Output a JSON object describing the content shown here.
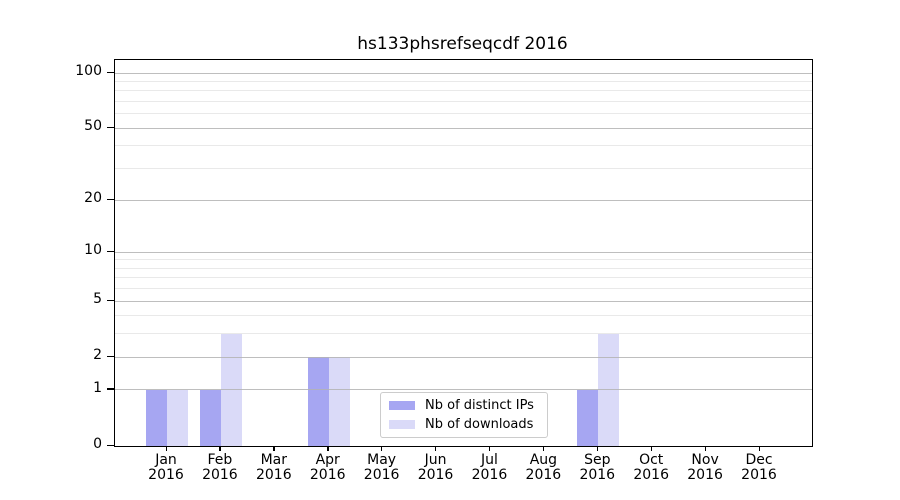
{
  "chart_data": {
    "type": "bar",
    "title": "hs133phsrefseqcdf 2016",
    "xlabel": "",
    "ylabel": "",
    "x_tick_year": "2016",
    "categories": [
      "Jan",
      "Feb",
      "Mar",
      "Apr",
      "May",
      "Jun",
      "Jul",
      "Aug",
      "Sep",
      "Oct",
      "Nov",
      "Dec"
    ],
    "series": [
      {
        "name": "Nb of distinct IPs",
        "color": "#a6a6f2",
        "values": [
          1,
          1,
          0,
          2,
          0,
          0,
          0,
          0,
          1,
          0,
          0,
          0
        ]
      },
      {
        "name": "Nb of downloads",
        "color": "#dadaf8",
        "values": [
          1,
          3,
          0,
          2,
          0,
          0,
          0,
          0,
          3,
          0,
          0,
          0
        ]
      }
    ],
    "yscale": "log1p",
    "yticks_major": [
      0,
      1,
      2,
      5,
      10,
      20,
      50,
      100
    ],
    "yticks_minor": [
      3,
      4,
      6,
      7,
      8,
      9,
      30,
      40,
      60,
      70,
      80,
      90
    ],
    "ylim": [
      0,
      118
    ],
    "grid": "horizontal, major and minor",
    "legend_position": "lower center",
    "colors": {
      "major_grid": "#b3b3b3",
      "minor_grid": "#e9e9e9",
      "axis": "#000000",
      "background": "#ffffff"
    }
  }
}
